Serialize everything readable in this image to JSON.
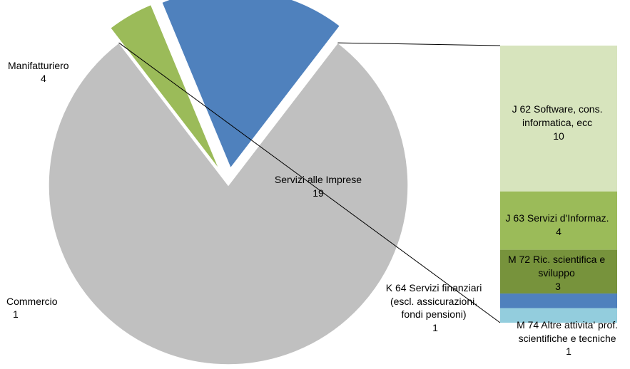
{
  "chart_data": {
    "type": "bar-of-pie",
    "pie": {
      "slices": [
        {
          "label": "Servizi alle Imprese",
          "value": 19,
          "color": "#c0c0c0"
        },
        {
          "label": "Commercio",
          "value": 1,
          "color": "#9bbb59"
        },
        {
          "label": "Manifatturiero",
          "value": 4,
          "color": "#4f81bd"
        }
      ]
    },
    "bar": {
      "breakdown_of": "Servizi alle Imprese",
      "segments": [
        {
          "label": "J 62 Software, cons. informatica, ecc",
          "value": 10,
          "color": "#d7e4bd"
        },
        {
          "label": "J 63 Servizi d'Informaz.",
          "value": 4,
          "color": "#9bbb59"
        },
        {
          "label": "M 72 Ric. scientifica e sviluppo",
          "value": 3,
          "color": "#77933c"
        },
        {
          "label": "K 64 Servizi finanziari (escl. assicurazioni, fondi pensioni)",
          "value": 1,
          "color": "#4f81bd"
        },
        {
          "label": "M 74 Altre attivita' prof. scientifiche e tecniche",
          "value": 1,
          "color": "#93cddd"
        }
      ]
    }
  }
}
